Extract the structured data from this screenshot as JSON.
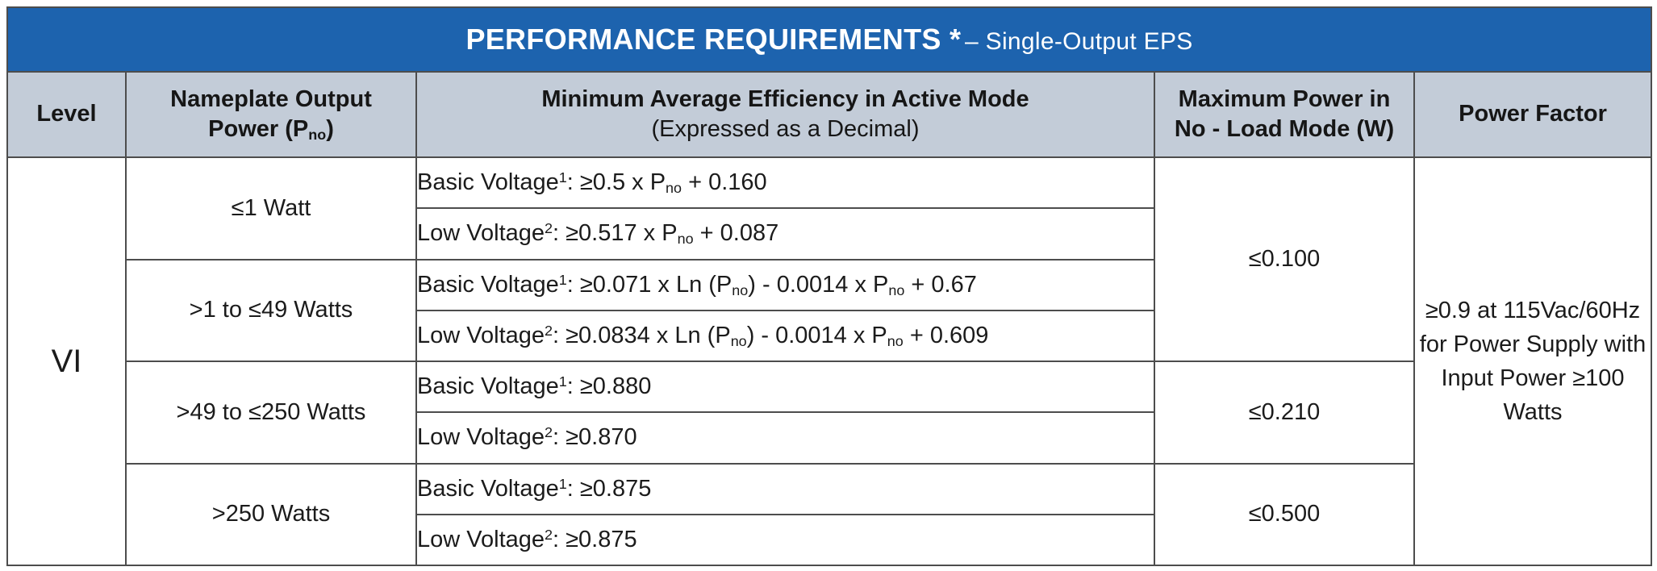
{
  "title": {
    "main": "PERFORMANCE REQUIREMENTS *",
    "sub": "– Single-Output EPS"
  },
  "header": {
    "level": "Level",
    "nameplate_line1": "Nameplate Output",
    "nameplate_line2": [
      {
        "s": "n",
        "v": "Power (P"
      },
      {
        "s": "sub",
        "v": "no"
      },
      {
        "s": "n",
        "v": ")"
      }
    ],
    "efficiency_line1": "Minimum Average Efficiency in Active Mode",
    "efficiency_line2": "(Expressed as a Decimal)",
    "no_load_line1": "Maximum Power in",
    "no_load_line2": "No - Load Mode (W)",
    "power_factor": "Power Factor"
  },
  "body": {
    "level": "VI",
    "groups": [
      {
        "power_range": "≤1 Watt",
        "basic": [
          {
            "s": "n",
            "v": "Basic Voltage"
          },
          {
            "s": "sup",
            "v": "1"
          },
          {
            "s": "n",
            "v": ": ≥0.5 x P"
          },
          {
            "s": "sub",
            "v": "no"
          },
          {
            "s": "n",
            "v": " + 0.160"
          }
        ],
        "low": [
          {
            "s": "n",
            "v": "Low Voltage"
          },
          {
            "s": "sup",
            "v": "2"
          },
          {
            "s": "n",
            "v": ": ≥0.517 x P"
          },
          {
            "s": "sub",
            "v": "no"
          },
          {
            "s": "n",
            "v": " + 0.087"
          }
        ]
      },
      {
        "power_range": ">1 to ≤49 Watts",
        "basic": [
          {
            "s": "n",
            "v": "Basic Voltage"
          },
          {
            "s": "sup",
            "v": "1"
          },
          {
            "s": "n",
            "v": ": ≥0.071 x Ln (P"
          },
          {
            "s": "sub",
            "v": "no"
          },
          {
            "s": "n",
            "v": ") - 0.0014 x P"
          },
          {
            "s": "sub",
            "v": "no"
          },
          {
            "s": "n",
            "v": " + 0.67"
          }
        ],
        "low": [
          {
            "s": "n",
            "v": "Low Voltage"
          },
          {
            "s": "sup",
            "v": "2"
          },
          {
            "s": "n",
            "v": ": ≥0.0834 x Ln (P"
          },
          {
            "s": "sub",
            "v": "no"
          },
          {
            "s": "n",
            "v": ") - 0.0014 x P"
          },
          {
            "s": "sub",
            "v": "no"
          },
          {
            "s": "n",
            "v": " + 0.609"
          }
        ]
      },
      {
        "power_range": ">49 to ≤250 Watts",
        "basic": [
          {
            "s": "n",
            "v": "Basic Voltage"
          },
          {
            "s": "sup",
            "v": "1"
          },
          {
            "s": "n",
            "v": ": ≥0.880"
          }
        ],
        "low": [
          {
            "s": "n",
            "v": "Low Voltage"
          },
          {
            "s": "sup",
            "v": "2"
          },
          {
            "s": "n",
            "v": ": ≥0.870"
          }
        ]
      },
      {
        "power_range": ">250 Watts",
        "basic": [
          {
            "s": "n",
            "v": "Basic Voltage"
          },
          {
            "s": "sup",
            "v": "1"
          },
          {
            "s": "n",
            "v": ": ≥0.875"
          }
        ],
        "low": [
          {
            "s": "n",
            "v": "Low Voltage"
          },
          {
            "s": "sup",
            "v": "2"
          },
          {
            "s": "n",
            "v": ": ≥0.875"
          }
        ]
      }
    ],
    "no_load_values": [
      "≤0.100",
      "≤0.210",
      "≤0.500"
    ],
    "power_factor": "≥0.9 at 115Vac/60Hz for Power Supply with Input Power ≥100 Watts"
  },
  "colors": {
    "title_bar": "#1d63ae",
    "header_bg": "#c3ccd8",
    "border": "#4d4d4d",
    "title_text": "#ffffff",
    "body_text": "#1b1b1b"
  }
}
